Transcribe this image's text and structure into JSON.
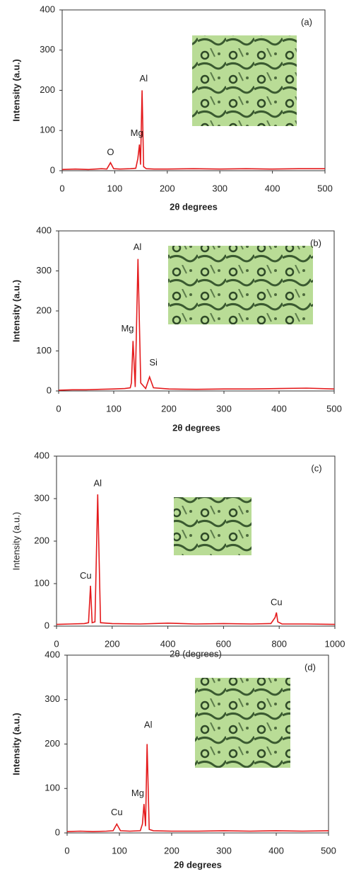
{
  "chart_data": [
    {
      "type": "line",
      "label": "(a)",
      "xlabel": "2θ degrees",
      "ylabel": "Intensity (a.u.)",
      "color": "#e41a1c",
      "x": [
        0,
        25,
        50,
        75,
        85,
        92,
        98,
        110,
        130,
        140,
        144,
        147,
        149,
        152,
        155,
        160,
        175,
        200,
        250,
        300,
        350,
        400,
        450,
        500
      ],
      "values": [
        3,
        4,
        3,
        5,
        4,
        20,
        5,
        4,
        5,
        6,
        30,
        65,
        15,
        200,
        10,
        5,
        4,
        4,
        5,
        4,
        5,
        4,
        5,
        5
      ],
      "xlim": [
        0,
        500
      ],
      "ylim": [
        0,
        400
      ],
      "xticks": [
        0,
        100,
        200,
        300,
        400,
        500
      ],
      "yticks": [
        0,
        100,
        200,
        300,
        400
      ],
      "annotations": [
        {
          "text": "O",
          "x": 92,
          "y": 45
        },
        {
          "text": "Mg",
          "x": 142,
          "y": 92
        },
        {
          "text": "Al",
          "x": 155,
          "y": 228
        }
      ]
    },
    {
      "type": "line",
      "label": "(b)",
      "xlabel": "2θ degrees",
      "ylabel": "Intensity (a.u.)",
      "color": "#e41a1c",
      "x": [
        0,
        25,
        50,
        75,
        100,
        120,
        130,
        132,
        135,
        139,
        144,
        149,
        158,
        165,
        172,
        200,
        250,
        300,
        350,
        400,
        450,
        500
      ],
      "values": [
        2,
        3,
        3,
        4,
        5,
        6,
        8,
        20,
        125,
        10,
        330,
        20,
        6,
        35,
        8,
        5,
        4,
        5,
        5,
        6,
        7,
        5
      ],
      "xlim": [
        0,
        500
      ],
      "ylim": [
        0,
        400
      ],
      "xticks": [
        0,
        100,
        200,
        300,
        400,
        500
      ],
      "yticks": [
        0,
        100,
        200,
        300,
        400
      ],
      "annotations": [
        {
          "text": "Mg",
          "x": 125,
          "y": 155
        },
        {
          "text": "Al",
          "x": 143,
          "y": 358
        },
        {
          "text": "Si",
          "x": 172,
          "y": 70
        }
      ]
    },
    {
      "type": "line",
      "label": "(c)",
      "xlabel": "2θ  (degrees)",
      "ylabel": "Intensity (a.u.)",
      "color": "#e41a1c",
      "x": [
        0,
        50,
        100,
        115,
        122,
        128,
        138,
        148,
        158,
        200,
        300,
        400,
        500,
        600,
        700,
        770,
        785,
        790,
        795,
        810,
        900,
        1000
      ],
      "values": [
        4,
        5,
        6,
        8,
        95,
        8,
        10,
        310,
        8,
        6,
        5,
        7,
        5,
        6,
        5,
        6,
        20,
        32,
        10,
        5,
        5,
        4
      ],
      "xlim": [
        0,
        1000
      ],
      "ylim": [
        0,
        400
      ],
      "xticks": [
        0,
        200,
        400,
        600,
        800,
        1000
      ],
      "yticks": [
        0,
        100,
        200,
        300,
        400
      ],
      "annotations": [
        {
          "text": "Cu",
          "x": 105,
          "y": 117
        },
        {
          "text": "Al",
          "x": 148,
          "y": 335
        },
        {
          "text": "Cu",
          "x": 790,
          "y": 55
        }
      ]
    },
    {
      "type": "line",
      "label": "(d)",
      "xlabel": "2θ degrees",
      "ylabel": "Intensity (a.u.)",
      "color": "#e41a1c",
      "x": [
        0,
        25,
        50,
        75,
        88,
        95,
        102,
        120,
        140,
        144,
        147,
        150,
        153,
        157,
        165,
        200,
        250,
        300,
        350,
        400,
        450,
        500
      ],
      "values": [
        3,
        4,
        3,
        4,
        5,
        20,
        5,
        4,
        5,
        20,
        65,
        15,
        200,
        8,
        5,
        4,
        4,
        5,
        4,
        5,
        4,
        5
      ],
      "xlim": [
        0,
        500
      ],
      "ylim": [
        0,
        400
      ],
      "xticks": [
        0,
        100,
        200,
        300,
        400,
        500
      ],
      "yticks": [
        0,
        100,
        200,
        300,
        400
      ],
      "annotations": [
        {
          "text": "Cu",
          "x": 95,
          "y": 45
        },
        {
          "text": "Mg",
          "x": 135,
          "y": 88
        },
        {
          "text": "Al",
          "x": 155,
          "y": 242
        }
      ]
    }
  ]
}
